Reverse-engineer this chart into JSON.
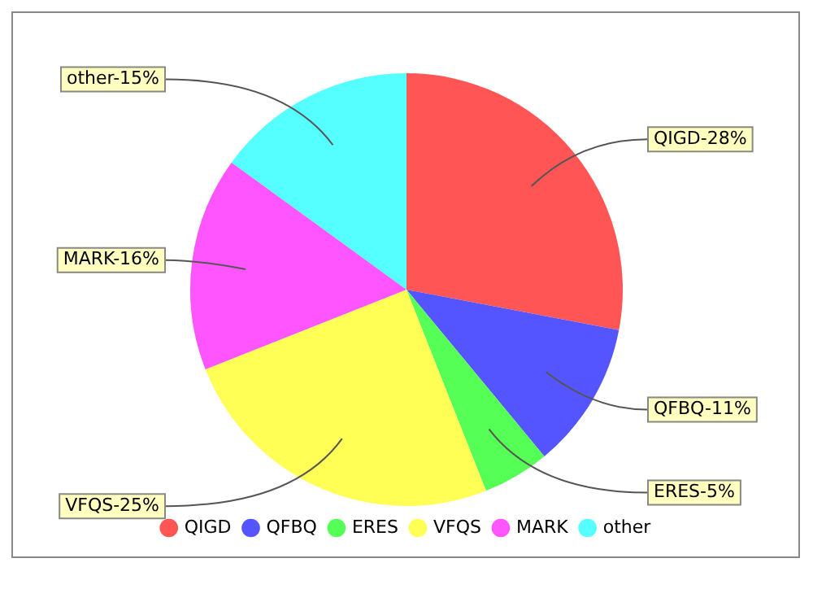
{
  "chart_data": {
    "type": "pie",
    "categories": [
      "QIGD",
      "QFBQ",
      "ERES",
      "VFQS",
      "MARK",
      "other"
    ],
    "values": [
      28,
      11,
      5,
      25,
      16,
      15
    ],
    "colors": [
      "#ff5555",
      "#5555ff",
      "#55ff55",
      "#ffff55",
      "#ff55ff",
      "#55ffff"
    ],
    "value_labels": [
      "QIGD-28%",
      "QFBQ-11%",
      "ERES-5%",
      "VFQS-25%",
      "MARK-16%",
      "other-15%"
    ],
    "legend": "bottom"
  }
}
